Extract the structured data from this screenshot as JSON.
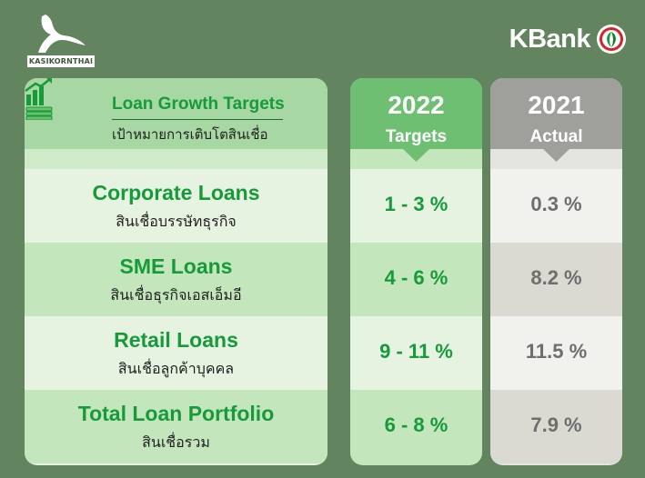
{
  "logos": {
    "left_wordmark": "KASIKORNTHAI",
    "right_brand": "KBank"
  },
  "colors": {
    "background": "#628560",
    "brand_green": "#169a3a",
    "kbank_red": "#d7222b",
    "header_main": "#a7d8a4",
    "header_target": "#6fbf73",
    "header_actual": "#9f9f9b",
    "value_grey": "#6e6e6e"
  },
  "header": {
    "title": "Loan Growth Targets",
    "subtitle": "เป้าหมายการเติบโตสินเชื่อ",
    "icon": "bar-chart-money-icon"
  },
  "columns": {
    "target": {
      "year": "2022",
      "label": "Targets"
    },
    "actual": {
      "year": "2021",
      "label": "Actual"
    }
  },
  "rows": [
    {
      "label": "Corporate Loans",
      "label_th": "สินเชื่อบรรษัทธุรกิจ",
      "target": "1 - 3 %",
      "actual": "0.3 %"
    },
    {
      "label": "SME Loans",
      "label_th": "สินเชื่อธุรกิจเอสเอ็มอี",
      "target": "4 - 6 %",
      "actual": "8.2 %"
    },
    {
      "label": "Retail Loans",
      "label_th": "สินเชื่อลูกค้าบุคคล",
      "target": "9 - 11 %",
      "actual": "11.5 %"
    },
    {
      "label": "Total Loan Portfolio",
      "label_th": "สินเชื่อรวม",
      "target": "6 - 8 %",
      "actual": "7.9 %"
    }
  ]
}
